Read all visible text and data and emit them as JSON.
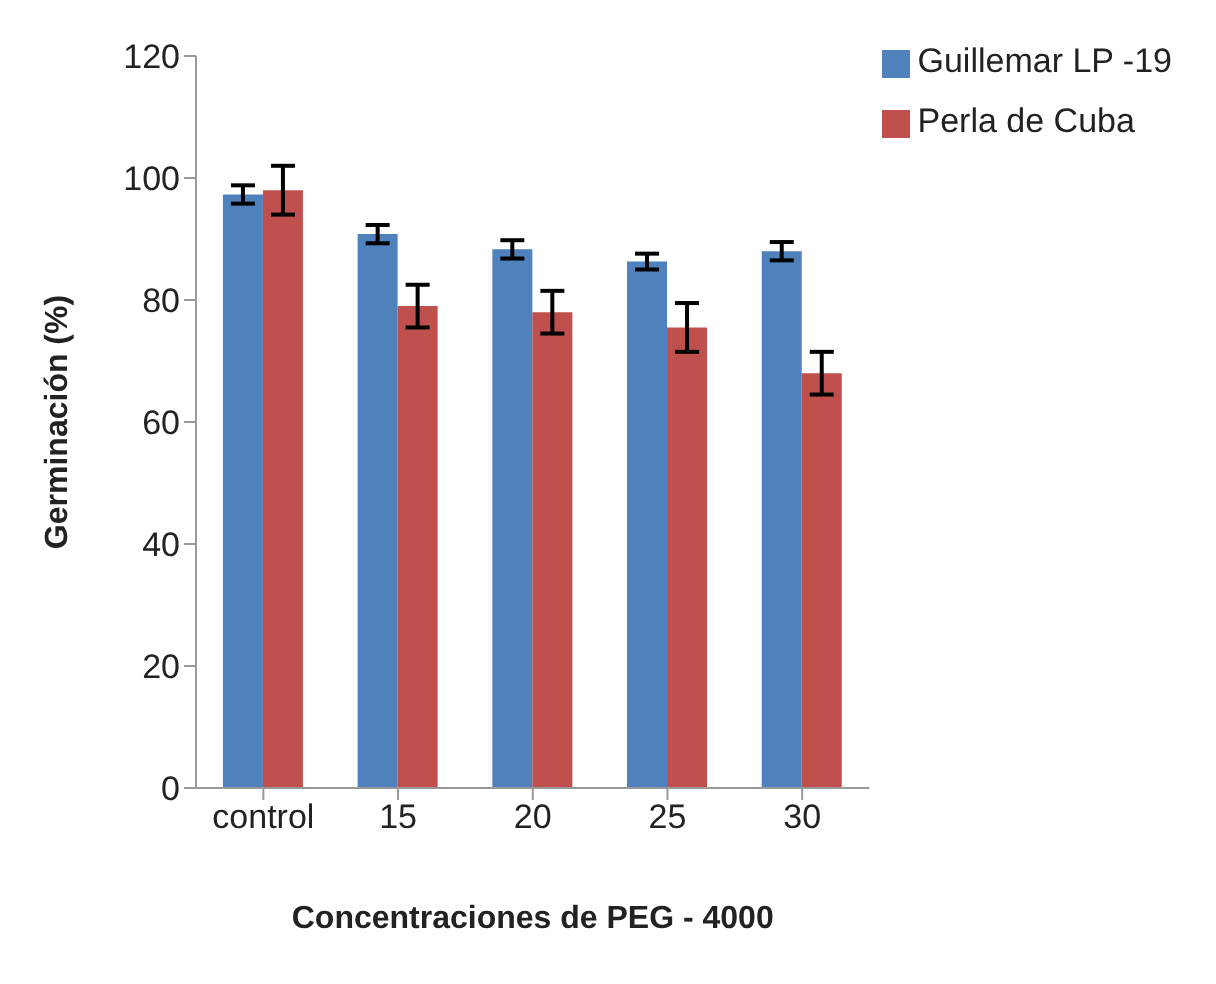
{
  "chart_data": {
    "type": "bar",
    "xlabel": "Concentraciones de PEG - 4000",
    "ylabel": "Germinación (%)",
    "categories": [
      "control",
      "15",
      "20",
      "25",
      "30"
    ],
    "series": [
      {
        "name": "Guillemar LP -19",
        "color": "#4f81bd",
        "values": [
          97.3,
          90.8,
          88.3,
          86.3,
          88
        ],
        "errors": [
          1.5,
          1.5,
          1.5,
          1.3,
          1.5
        ]
      },
      {
        "name": "Perla de Cuba",
        "color": "#c0504d",
        "values": [
          98,
          79,
          78,
          75.5,
          68
        ],
        "errors": [
          4,
          3.5,
          3.5,
          4,
          3.5
        ]
      }
    ],
    "ylim": [
      0,
      120
    ],
    "yticks": [
      0,
      20,
      40,
      60,
      80,
      100,
      120
    ],
    "grid": false,
    "legend": "top right"
  }
}
